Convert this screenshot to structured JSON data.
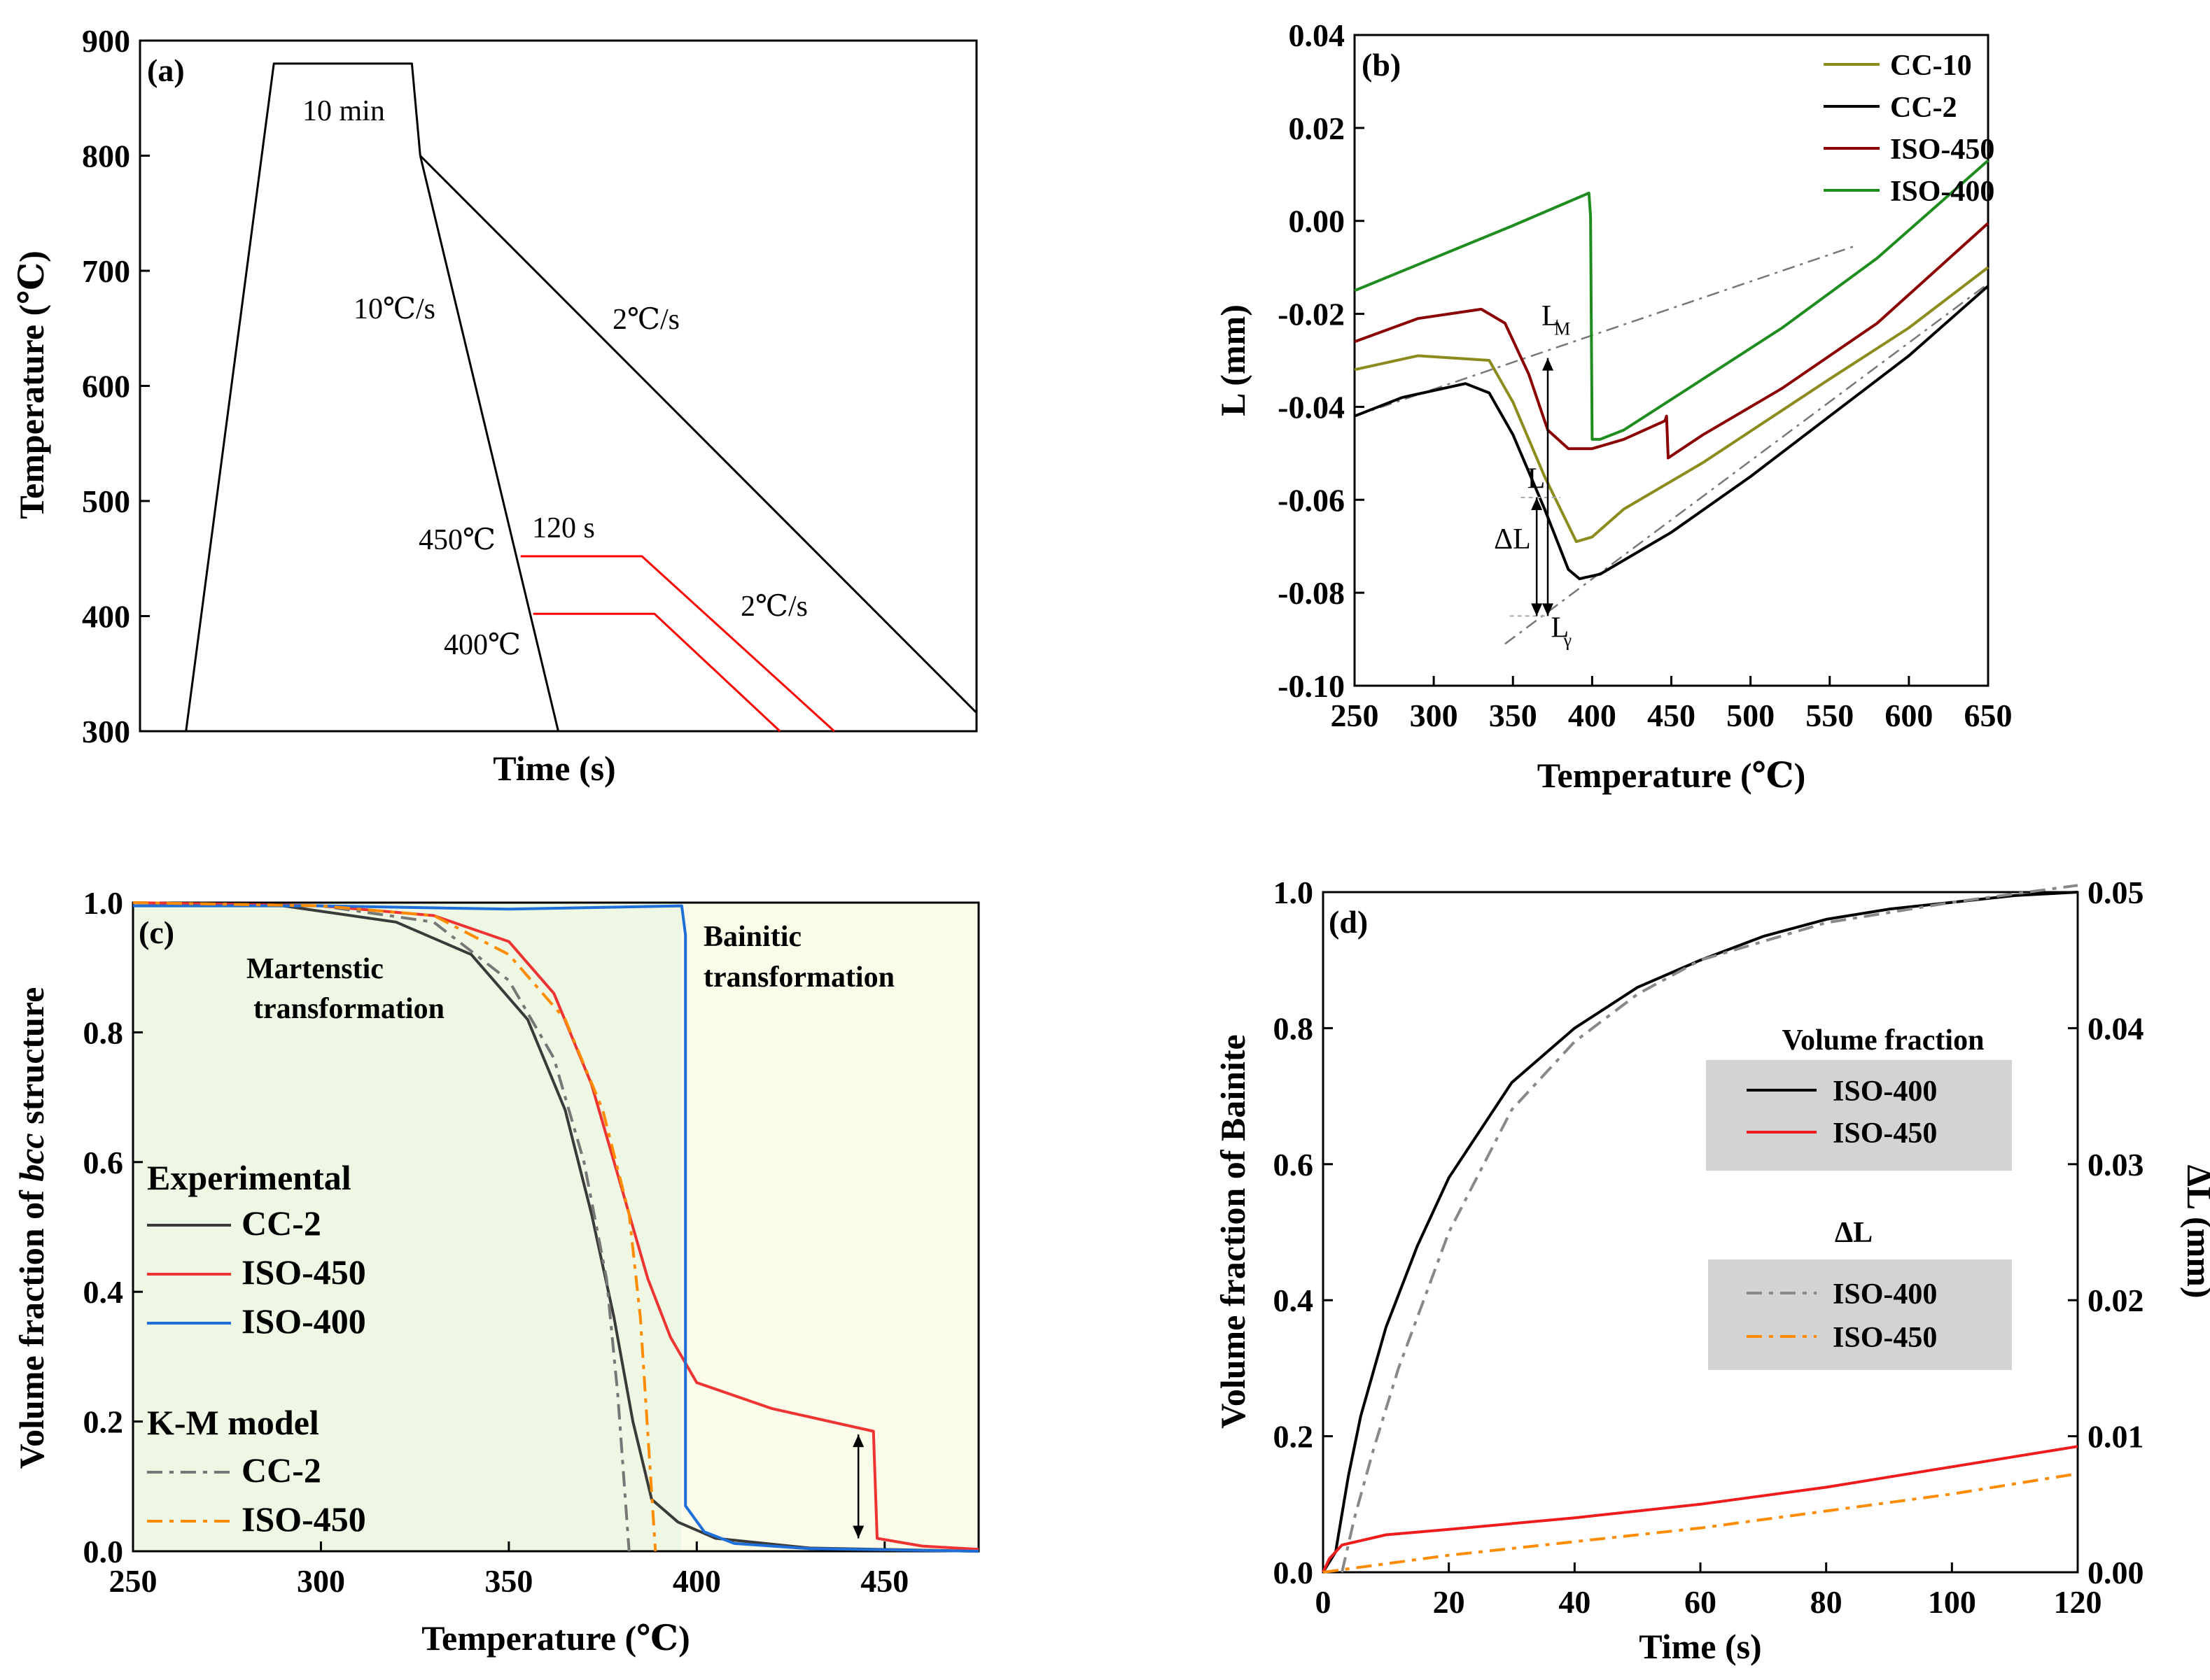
{
  "chart_data": [
    {
      "id": "a",
      "type": "line",
      "panel_label": "(a)",
      "xlabel": "Time (s)",
      "ylabel": "Temperature (℃)",
      "ylim": [
        300,
        900
      ],
      "yticks": [
        "300",
        "400",
        "500",
        "600",
        "700",
        "800",
        "900"
      ],
      "x_note": "no x tick labels shown",
      "annotations": [
        "10 min",
        "10℃/s",
        "2℃/s",
        "450℃",
        "120 s",
        "400℃",
        "2℃/s"
      ],
      "series": [
        {
          "name": "heating-hold",
          "color": "#000000",
          "points": [
            [
              0.055,
              300
            ],
            [
              0.16,
              880
            ],
            [
              0.325,
              880
            ],
            [
              0.335,
              800
            ]
          ]
        },
        {
          "name": "10℃/s",
          "color": "#000000",
          "points": [
            [
              0.335,
              800
            ],
            [
              0.5,
              300
            ]
          ]
        },
        {
          "name": "2℃/s",
          "color": "#000000",
          "points": [
            [
              0.335,
              800
            ],
            [
              1.0,
              316
            ]
          ]
        },
        {
          "name": "ISO-450",
          "color": "#ff0000",
          "points": [
            [
              0.455,
              452
            ],
            [
              0.6,
              452
            ],
            [
              0.83,
              300
            ]
          ]
        },
        {
          "name": "ISO-400",
          "color": "#ff0000",
          "points": [
            [
              0.47,
              402
            ],
            [
              0.615,
              402
            ],
            [
              0.765,
              300
            ]
          ]
        }
      ]
    },
    {
      "id": "b",
      "type": "line",
      "panel_label": "(b)",
      "xlabel": "Temperature (℃)",
      "ylabel": "L (mm)",
      "xlim": [
        250,
        650
      ],
      "ylim": [
        -0.1,
        0.04
      ],
      "xticks": [
        "250",
        "300",
        "350",
        "400",
        "450",
        "500",
        "550",
        "600",
        "650"
      ],
      "yticks": [
        "-0.10",
        "-0.08",
        "-0.06",
        "-0.04",
        "-0.02",
        "0.00",
        "0.02",
        "0.04"
      ],
      "legend_position": "top-right",
      "annotations": {
        "lm": "L",
        "lm_sub": "M",
        "l": "L",
        "dl": "ΔL",
        "lg": "L",
        "lg_sub": "γ"
      },
      "series": [
        {
          "name": "CC-10",
          "color": "#8c8c1e",
          "points": [
            [
              250,
              -0.032
            ],
            [
              290,
              -0.029
            ],
            [
              335,
              -0.03
            ],
            [
              350,
              -0.039
            ],
            [
              370,
              -0.055
            ],
            [
              390,
              -0.069
            ],
            [
              400,
              -0.068
            ],
            [
              420,
              -0.062
            ],
            [
              470,
              -0.052
            ],
            [
              550,
              -0.034
            ],
            [
              600,
              -0.023
            ],
            [
              650,
              -0.01
            ]
          ]
        },
        {
          "name": "CC-2",
          "color": "#000000",
          "points": [
            [
              250,
              -0.042
            ],
            [
              280,
              -0.038
            ],
            [
              320,
              -0.035
            ],
            [
              335,
              -0.037
            ],
            [
              350,
              -0.046
            ],
            [
              370,
              -0.062
            ],
            [
              385,
              -0.075
            ],
            [
              392,
              -0.077
            ],
            [
              405,
              -0.076
            ],
            [
              450,
              -0.067
            ],
            [
              500,
              -0.055
            ],
            [
              550,
              -0.042
            ],
            [
              600,
              -0.029
            ],
            [
              650,
              -0.014
            ]
          ]
        },
        {
          "name": "ISO-450",
          "color": "#8b0000",
          "points": [
            [
              250,
              -0.026
            ],
            [
              290,
              -0.021
            ],
            [
              330,
              -0.019
            ],
            [
              345,
              -0.022
            ],
            [
              360,
              -0.033
            ],
            [
              372,
              -0.045
            ],
            [
              385,
              -0.049
            ],
            [
              400,
              -0.049
            ],
            [
              420,
              -0.047
            ],
            [
              446,
              -0.043
            ],
            [
              447,
              -0.042
            ],
            [
              448,
              -0.051
            ],
            [
              470,
              -0.046
            ],
            [
              520,
              -0.036
            ],
            [
              580,
              -0.022
            ],
            [
              650,
              -0.0005
            ]
          ]
        },
        {
          "name": "ISO-400",
          "color": "#1e8c1e",
          "points": [
            [
              250,
              -0.015
            ],
            [
              300,
              -0.008
            ],
            [
              350,
              -0.001
            ],
            [
              398,
              0.006
            ],
            [
              399,
              0.001
            ],
            [
              400,
              -0.047
            ],
            [
              405,
              -0.047
            ],
            [
              420,
              -0.045
            ],
            [
              470,
              -0.034
            ],
            [
              520,
              -0.023
            ],
            [
              580,
              -0.008
            ],
            [
              650,
              0.013
            ]
          ]
        }
      ],
      "guides": [
        {
          "name": "bainite-extrapolation",
          "color": "#777777",
          "points": [
            [
              250,
              -0.042
            ],
            [
              565,
              -0.0055
            ]
          ]
        },
        {
          "name": "austenite-extrapolation",
          "color": "#777777",
          "points": [
            [
              345,
              -0.091
            ],
            [
              650,
              -0.0135
            ]
          ]
        }
      ]
    },
    {
      "id": "c",
      "type": "line",
      "panel_label": "(c)",
      "xlabel": "Temperature (℃)",
      "ylabel_prefix": "Volume fraction of ",
      "ylabel_italic": "bcc",
      "ylabel_suffix": " structure",
      "xlim": [
        250,
        475
      ],
      "ylim": [
        0,
        1.0
      ],
      "xticks": [
        "250",
        "300",
        "350",
        "400",
        "450"
      ],
      "yticks": [
        "0.0",
        "0.2",
        "0.4",
        "0.6",
        "0.8",
        "1.0"
      ],
      "region_labels": [
        "Martenstic",
        "transformation",
        "Bainitic",
        "transformation"
      ],
      "region_colors": {
        "martensitic": "#eef7e4",
        "bainitic": "#fbfbea"
      },
      "legend_groups": [
        "Experimental",
        "K-M model"
      ],
      "series": [
        {
          "name": "CC-2",
          "group": "Experimental",
          "color": "#3a3a3a",
          "dash": "",
          "points": [
            [
              250,
              1.0
            ],
            [
              290,
              0.995
            ],
            [
              320,
              0.97
            ],
            [
              340,
              0.92
            ],
            [
              355,
              0.82
            ],
            [
              365,
              0.68
            ],
            [
              372,
              0.52
            ],
            [
              378,
              0.36
            ],
            [
              383,
              0.2
            ],
            [
              388,
              0.08
            ],
            [
              395,
              0.045
            ],
            [
              405,
              0.02
            ],
            [
              430,
              0.005
            ],
            [
              475,
              0.0
            ]
          ]
        },
        {
          "name": "ISO-450",
          "group": "Experimental",
          "color": "#ee3333",
          "dash": "",
          "points": [
            [
              250,
              1.0
            ],
            [
              300,
              0.995
            ],
            [
              330,
              0.98
            ],
            [
              350,
              0.94
            ],
            [
              362,
              0.86
            ],
            [
              372,
              0.72
            ],
            [
              380,
              0.56
            ],
            [
              387,
              0.42
            ],
            [
              393,
              0.33
            ],
            [
              400,
              0.26
            ],
            [
              420,
              0.22
            ],
            [
              447,
              0.185
            ],
            [
              448,
              0.02
            ],
            [
              460,
              0.008
            ],
            [
              475,
              0.003
            ]
          ]
        },
        {
          "name": "ISO-400",
          "group": "Experimental",
          "color": "#1e6fd8",
          "dash": "",
          "points": [
            [
              250,
              0.995
            ],
            [
              300,
              0.995
            ],
            [
              350,
              0.99
            ],
            [
              396,
              0.995
            ],
            [
              397,
              0.95
            ],
            [
              397,
              0.07
            ],
            [
              402,
              0.03
            ],
            [
              410,
              0.012
            ],
            [
              430,
              0.004
            ],
            [
              475,
              0.0
            ]
          ]
        },
        {
          "name": "CC-2",
          "group": "K-M model",
          "color": "#777777",
          "dash": "22,10,6,10",
          "points": [
            [
              250,
              1.0
            ],
            [
              300,
              0.995
            ],
            [
              330,
              0.97
            ],
            [
              350,
              0.88
            ],
            [
              362,
              0.76
            ],
            [
              370,
              0.6
            ],
            [
              376,
              0.42
            ],
            [
              379,
              0.24
            ],
            [
              381,
              0.08
            ],
            [
              382,
              0.0
            ]
          ]
        },
        {
          "name": "ISO-450",
          "group": "K-M model",
          "color": "#ff8c00",
          "dash": "22,10,6,10",
          "points": [
            [
              250,
              1.0
            ],
            [
              300,
              0.995
            ],
            [
              330,
              0.98
            ],
            [
              350,
              0.92
            ],
            [
              365,
              0.82
            ],
            [
              375,
              0.68
            ],
            [
              382,
              0.52
            ],
            [
              385,
              0.36
            ],
            [
              387,
              0.18
            ],
            [
              389,
              0.0
            ]
          ]
        }
      ]
    },
    {
      "id": "d",
      "type": "line",
      "panel_label": "(d)",
      "xlabel": "Time (s)",
      "ylabel": "Volume fraction of Bainite",
      "ylabel_right": "ΔL (mm)",
      "xlim": [
        0,
        120
      ],
      "ylim": [
        0,
        1.0
      ],
      "ylim_right": [
        0,
        0.05
      ],
      "xticks": [
        "0",
        "20",
        "40",
        "60",
        "80",
        "100",
        "120"
      ],
      "yticks": [
        "0.0",
        "0.2",
        "0.4",
        "0.6",
        "0.8",
        "1.0"
      ],
      "yticks_right": [
        "0.00",
        "0.01",
        "0.02",
        "0.03",
        "0.04",
        "0.05"
      ],
      "legend_titles": [
        "Volume fraction",
        "ΔL"
      ],
      "series": [
        {
          "name": "ISO-400",
          "group": "Volume fraction",
          "color": "#000000",
          "dash": "",
          "points": [
            [
              0,
              0
            ],
            [
              2,
              0.03
            ],
            [
              4,
              0.14
            ],
            [
              6,
              0.23
            ],
            [
              10,
              0.36
            ],
            [
              15,
              0.48
            ],
            [
              20,
              0.58
            ],
            [
              30,
              0.72
            ],
            [
              40,
              0.8
            ],
            [
              50,
              0.86
            ],
            [
              60,
              0.9
            ],
            [
              70,
              0.935
            ],
            [
              80,
              0.96
            ],
            [
              90,
              0.975
            ],
            [
              100,
              0.985
            ],
            [
              110,
              0.995
            ],
            [
              120,
              1.0
            ]
          ]
        },
        {
          "name": "ISO-450",
          "group": "Volume fraction",
          "color": "#ee1c1c",
          "dash": "",
          "points": [
            [
              0,
              0
            ],
            [
              1,
              0.02
            ],
            [
              3,
              0.04
            ],
            [
              10,
              0.055
            ],
            [
              20,
              0.063
            ],
            [
              40,
              0.08
            ],
            [
              60,
              0.1
            ],
            [
              80,
              0.125
            ],
            [
              100,
              0.155
            ],
            [
              120,
              0.185
            ]
          ]
        },
        {
          "name": "ISO-400",
          "group": "ΔL",
          "color": "#888888",
          "dash": "22,10,6,10",
          "points": [
            [
              3,
              0
            ],
            [
              5,
              0.08
            ],
            [
              8,
              0.18
            ],
            [
              12,
              0.3
            ],
            [
              20,
              0.5
            ],
            [
              30,
              0.68
            ],
            [
              40,
              0.78
            ],
            [
              50,
              0.85
            ],
            [
              60,
              0.9
            ],
            [
              80,
              0.955
            ],
            [
              100,
              0.985
            ],
            [
              120,
              1.01
            ]
          ]
        },
        {
          "name": "ISO-450",
          "group": "ΔL",
          "color": "#ff8c00",
          "dash": "22,10,6,10",
          "points": [
            [
              0,
              0
            ],
            [
              20,
              0.025
            ],
            [
              40,
              0.045
            ],
            [
              60,
              0.065
            ],
            [
              80,
              0.09
            ],
            [
              100,
              0.115
            ],
            [
              120,
              0.145
            ]
          ]
        }
      ]
    }
  ]
}
